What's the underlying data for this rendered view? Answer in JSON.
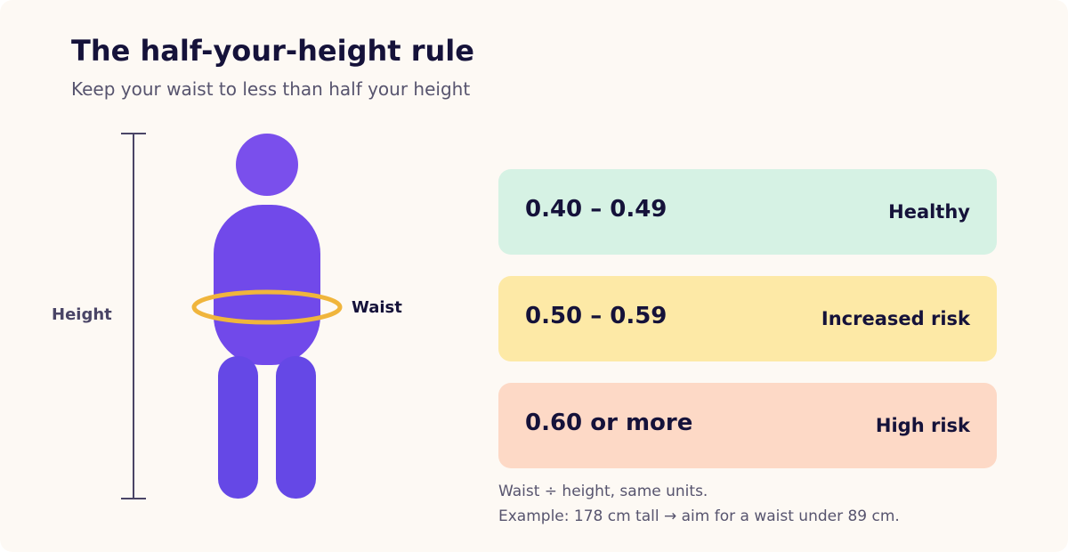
{
  "header": {
    "title": "The half-your-height rule",
    "subtitle": "Keep your waist to less than half your height"
  },
  "figure": {
    "height_label": "Height",
    "waist_label": "Waist"
  },
  "ranges": [
    {
      "range": "0.40 – 0.49",
      "label": "Healthy"
    },
    {
      "range": "0.50 – 0.59",
      "label": "Increased risk"
    },
    {
      "range": "0.60 or more",
      "label": "High risk"
    }
  ],
  "notes": [
    "Waist ÷ height, same units.",
    "Example: 178 cm tall → aim for a waist under 89 cm."
  ]
}
